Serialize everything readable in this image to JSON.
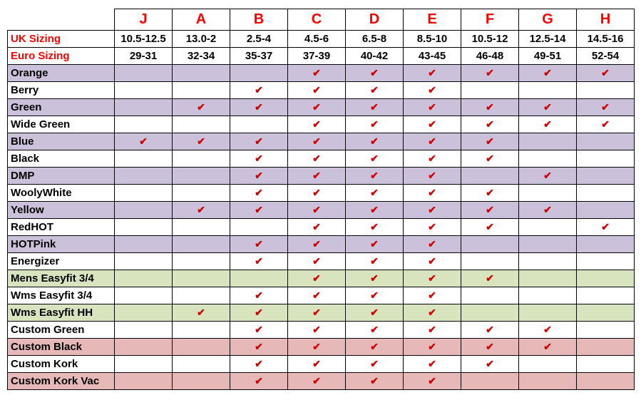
{
  "table": {
    "check_glyph": "✔",
    "columns": [
      "J",
      "A",
      "B",
      "C",
      "D",
      "E",
      "F",
      "G",
      "H"
    ],
    "uk_sizing": {
      "label": "UK Sizing",
      "values": [
        "10.5-12.5",
        "13.0-2",
        "2.5-4",
        "4.5-6",
        "6.5-8",
        "8.5-10",
        "10.5-12",
        "12.5-14",
        "14.5-16"
      ]
    },
    "euro_sizing": {
      "label": "Euro Sizing",
      "values": [
        "29-31",
        "32-34",
        "35-37",
        "37-39",
        "40-42",
        "43-45",
        "46-48",
        "49-51",
        "52-54"
      ]
    },
    "rows": [
      {
        "label": "Orange",
        "bg": "lavender",
        "checks": [
          0,
          0,
          0,
          1,
          1,
          1,
          1,
          1,
          1
        ]
      },
      {
        "label": "Berry",
        "bg": "white",
        "checks": [
          0,
          0,
          1,
          1,
          1,
          1,
          0,
          0,
          0
        ]
      },
      {
        "label": "Green",
        "bg": "lavender",
        "checks": [
          0,
          1,
          1,
          1,
          1,
          1,
          1,
          1,
          1
        ]
      },
      {
        "label": "Wide Green",
        "bg": "white",
        "checks": [
          0,
          0,
          0,
          1,
          1,
          1,
          1,
          1,
          1
        ]
      },
      {
        "label": "Blue",
        "bg": "lavender",
        "checks": [
          1,
          1,
          1,
          1,
          1,
          1,
          1,
          0,
          0
        ]
      },
      {
        "label": "Black",
        "bg": "white",
        "checks": [
          0,
          0,
          1,
          1,
          1,
          1,
          1,
          0,
          0
        ]
      },
      {
        "label": "DMP",
        "bg": "lavender",
        "checks": [
          0,
          0,
          1,
          1,
          1,
          1,
          0,
          1,
          0
        ]
      },
      {
        "label": "WoolyWhite",
        "bg": "white",
        "checks": [
          0,
          0,
          1,
          1,
          1,
          1,
          1,
          0,
          0
        ]
      },
      {
        "label": "Yellow",
        "bg": "lavender",
        "checks": [
          0,
          1,
          1,
          1,
          1,
          1,
          1,
          1,
          0
        ]
      },
      {
        "label": "RedHOT",
        "bg": "white",
        "checks": [
          0,
          0,
          0,
          1,
          1,
          1,
          1,
          0,
          1
        ]
      },
      {
        "label": "HOTPink",
        "bg": "lavender",
        "checks": [
          0,
          0,
          1,
          1,
          1,
          1,
          0,
          0,
          0
        ]
      },
      {
        "label": "Energizer",
        "bg": "white",
        "checks": [
          0,
          0,
          1,
          1,
          1,
          1,
          0,
          0,
          0
        ]
      },
      {
        "label": "Mens Easyfit 3/4",
        "bg": "green",
        "checks": [
          0,
          0,
          0,
          1,
          1,
          1,
          1,
          0,
          0
        ]
      },
      {
        "label": "Wms Easyfit 3/4",
        "bg": "white",
        "checks": [
          0,
          0,
          1,
          1,
          1,
          1,
          0,
          0,
          0
        ]
      },
      {
        "label": "Wms Easyfit HH",
        "bg": "green",
        "checks": [
          0,
          1,
          1,
          1,
          1,
          1,
          0,
          0,
          0
        ]
      },
      {
        "label": "Custom Green",
        "bg": "white",
        "checks": [
          0,
          0,
          1,
          1,
          1,
          1,
          1,
          1,
          0
        ]
      },
      {
        "label": "Custom Black",
        "bg": "pink",
        "checks": [
          0,
          0,
          1,
          1,
          1,
          1,
          1,
          1,
          0
        ]
      },
      {
        "label": "Custom Kork",
        "bg": "white",
        "checks": [
          0,
          0,
          1,
          1,
          1,
          1,
          1,
          0,
          0
        ]
      },
      {
        "label": "Custom Kork Vac",
        "bg": "pink",
        "checks": [
          0,
          0,
          1,
          1,
          1,
          1,
          0,
          0,
          0
        ]
      }
    ],
    "colors": {
      "lavender": "#CCC1DA",
      "green": "#D7E4BD",
      "pink": "#E6B9B8",
      "white": "#FFFFFF",
      "header_red": "#FF0000",
      "check_red": "#D00000",
      "border": "#000000"
    }
  }
}
